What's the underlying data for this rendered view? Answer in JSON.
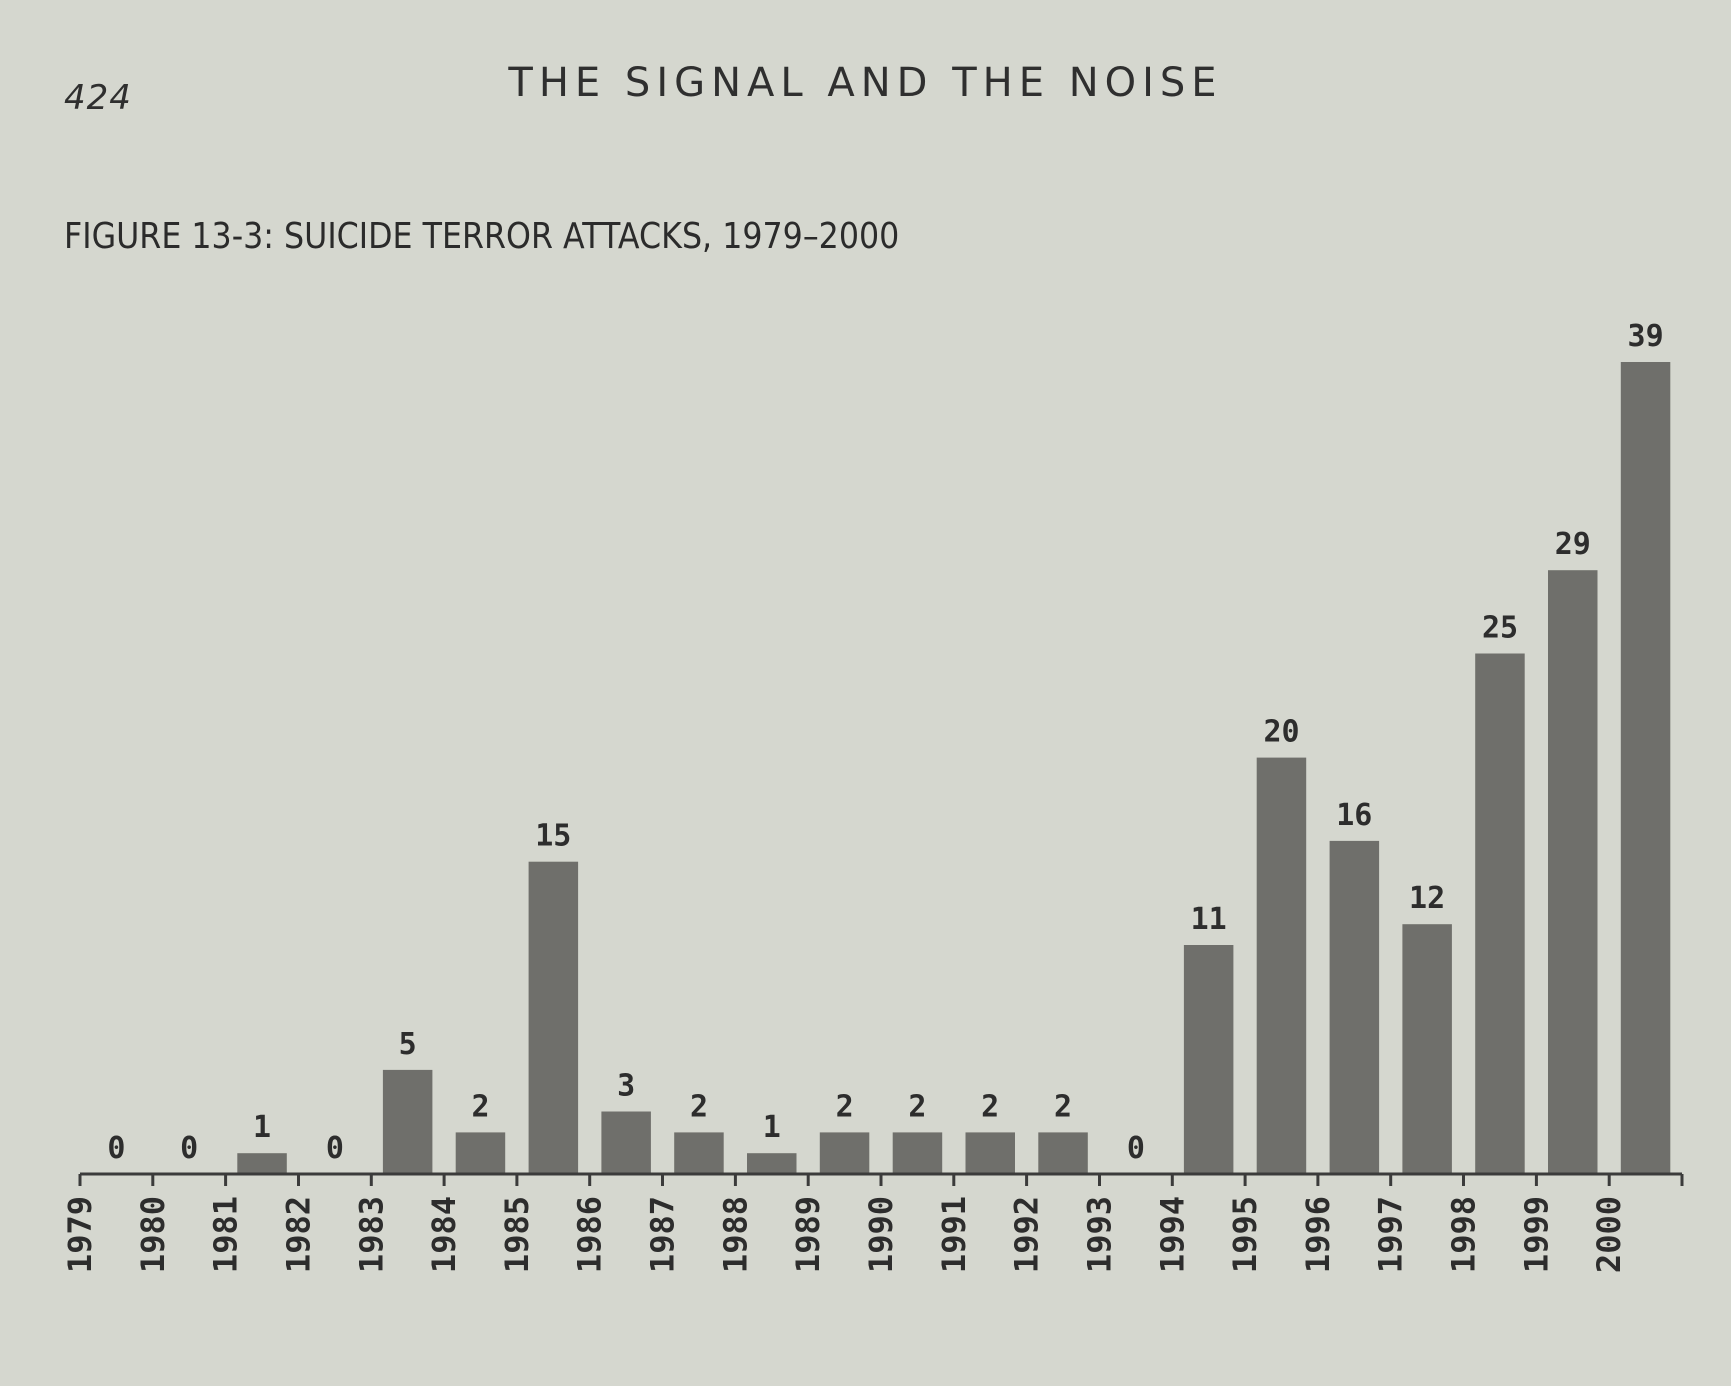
{
  "page": {
    "page_number": "424",
    "running_head": "THE SIGNAL AND THE NOISE",
    "figure_title": "FIGURE 13-3: SUICIDE TERROR ATTACKS, 1979–2000"
  },
  "chart_data": {
    "type": "bar",
    "title": "FIGURE 13-3: SUICIDE TERROR ATTACKS, 1979–2000",
    "xlabel": "",
    "ylabel": "",
    "ylim": [
      0,
      39
    ],
    "grid": false,
    "categories": [
      "1979",
      "1980",
      "1981",
      "1982",
      "1983",
      "1984",
      "1985",
      "1986",
      "1987",
      "1988",
      "1989",
      "1990",
      "1991",
      "1992",
      "1993",
      "1994",
      "1995",
      "1996",
      "1997",
      "1998",
      "1999",
      "2000"
    ],
    "values": [
      0,
      0,
      1,
      0,
      5,
      2,
      15,
      3,
      2,
      1,
      2,
      2,
      2,
      2,
      0,
      11,
      20,
      16,
      12,
      25,
      29,
      39
    ],
    "data_labels": [
      "0",
      "0",
      "1",
      "0",
      "5",
      "2",
      "15",
      "3",
      "2",
      "1",
      "2",
      "2",
      "2",
      "2",
      "0",
      "11",
      "20",
      "16",
      "12",
      "25",
      "29",
      "39"
    ],
    "bar_color": "#6f6f6b"
  }
}
